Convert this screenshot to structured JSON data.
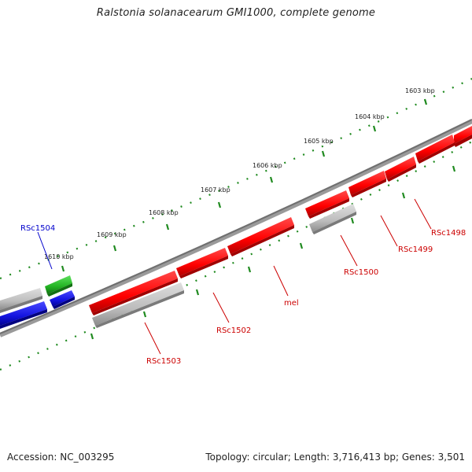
{
  "title": "Ralstonia solanacearum GMI1000, complete genome",
  "footer": {
    "accession": "Accession: NC_003295",
    "summary": "Topology: circular; Length: 3,716,413 bp; Genes: 3,501"
  },
  "colors": {
    "backbone": "#808080",
    "ruler_ticks": "#1f8a1f",
    "gene_red": "#ff0000",
    "gene_grey": "#bdbdbd",
    "gene_blue": "#1414e0",
    "gene_green": "#22b322",
    "label_red": "#cc0000",
    "label_blue": "#0000cc"
  },
  "kbp_labels": [
    "1603 kbp",
    "1604 kbp",
    "1605 kbp",
    "1606 kbp",
    "1607 kbp",
    "1608 kbp",
    "1609 kbp",
    "1610 kbp"
  ],
  "gene_labels": {
    "rsc1504": "RSc1504",
    "rsc1498": "RSc1498",
    "rsc1499": "RSc1499",
    "rsc1500": "RSc1500",
    "mel": "mel",
    "rsc1502": "RSc1502",
    "rsc1503": "RSc1503"
  }
}
